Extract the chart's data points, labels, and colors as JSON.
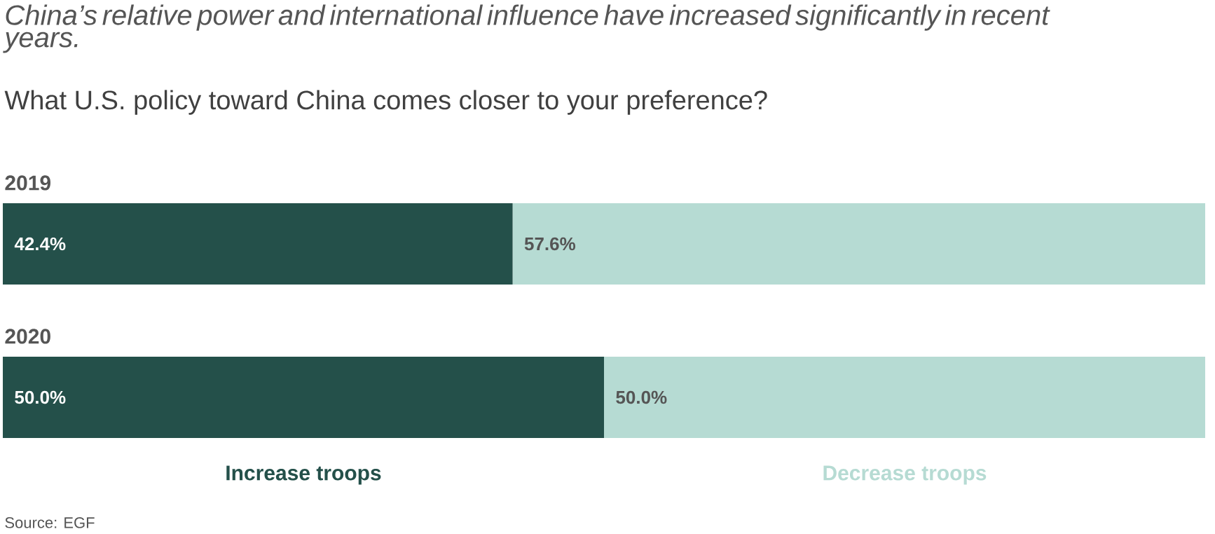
{
  "chart_data": {
    "type": "bar",
    "orientation": "horizontal",
    "stacked": true,
    "title": "China’s relative power and international influence have increased significantly in recent years.",
    "subtitle": "What U.S. policy toward China comes closer to your preference?",
    "categories": [
      "2019",
      "2020"
    ],
    "series": [
      {
        "name": "Increase troops",
        "color": "#24504a",
        "values": [
          42.4,
          50.0
        ],
        "value_labels": [
          "42.4%",
          "50.0%"
        ]
      },
      {
        "name": "Decrease troops",
        "color": "#b6dbd3",
        "values": [
          57.6,
          50.0
        ],
        "value_labels": [
          "57.6%",
          "50.0%"
        ]
      }
    ],
    "xlim": [
      0,
      100
    ],
    "tick_labels": "y",
    "legend": "bottom",
    "annotations": [
      "Source: EGF"
    ]
  }
}
